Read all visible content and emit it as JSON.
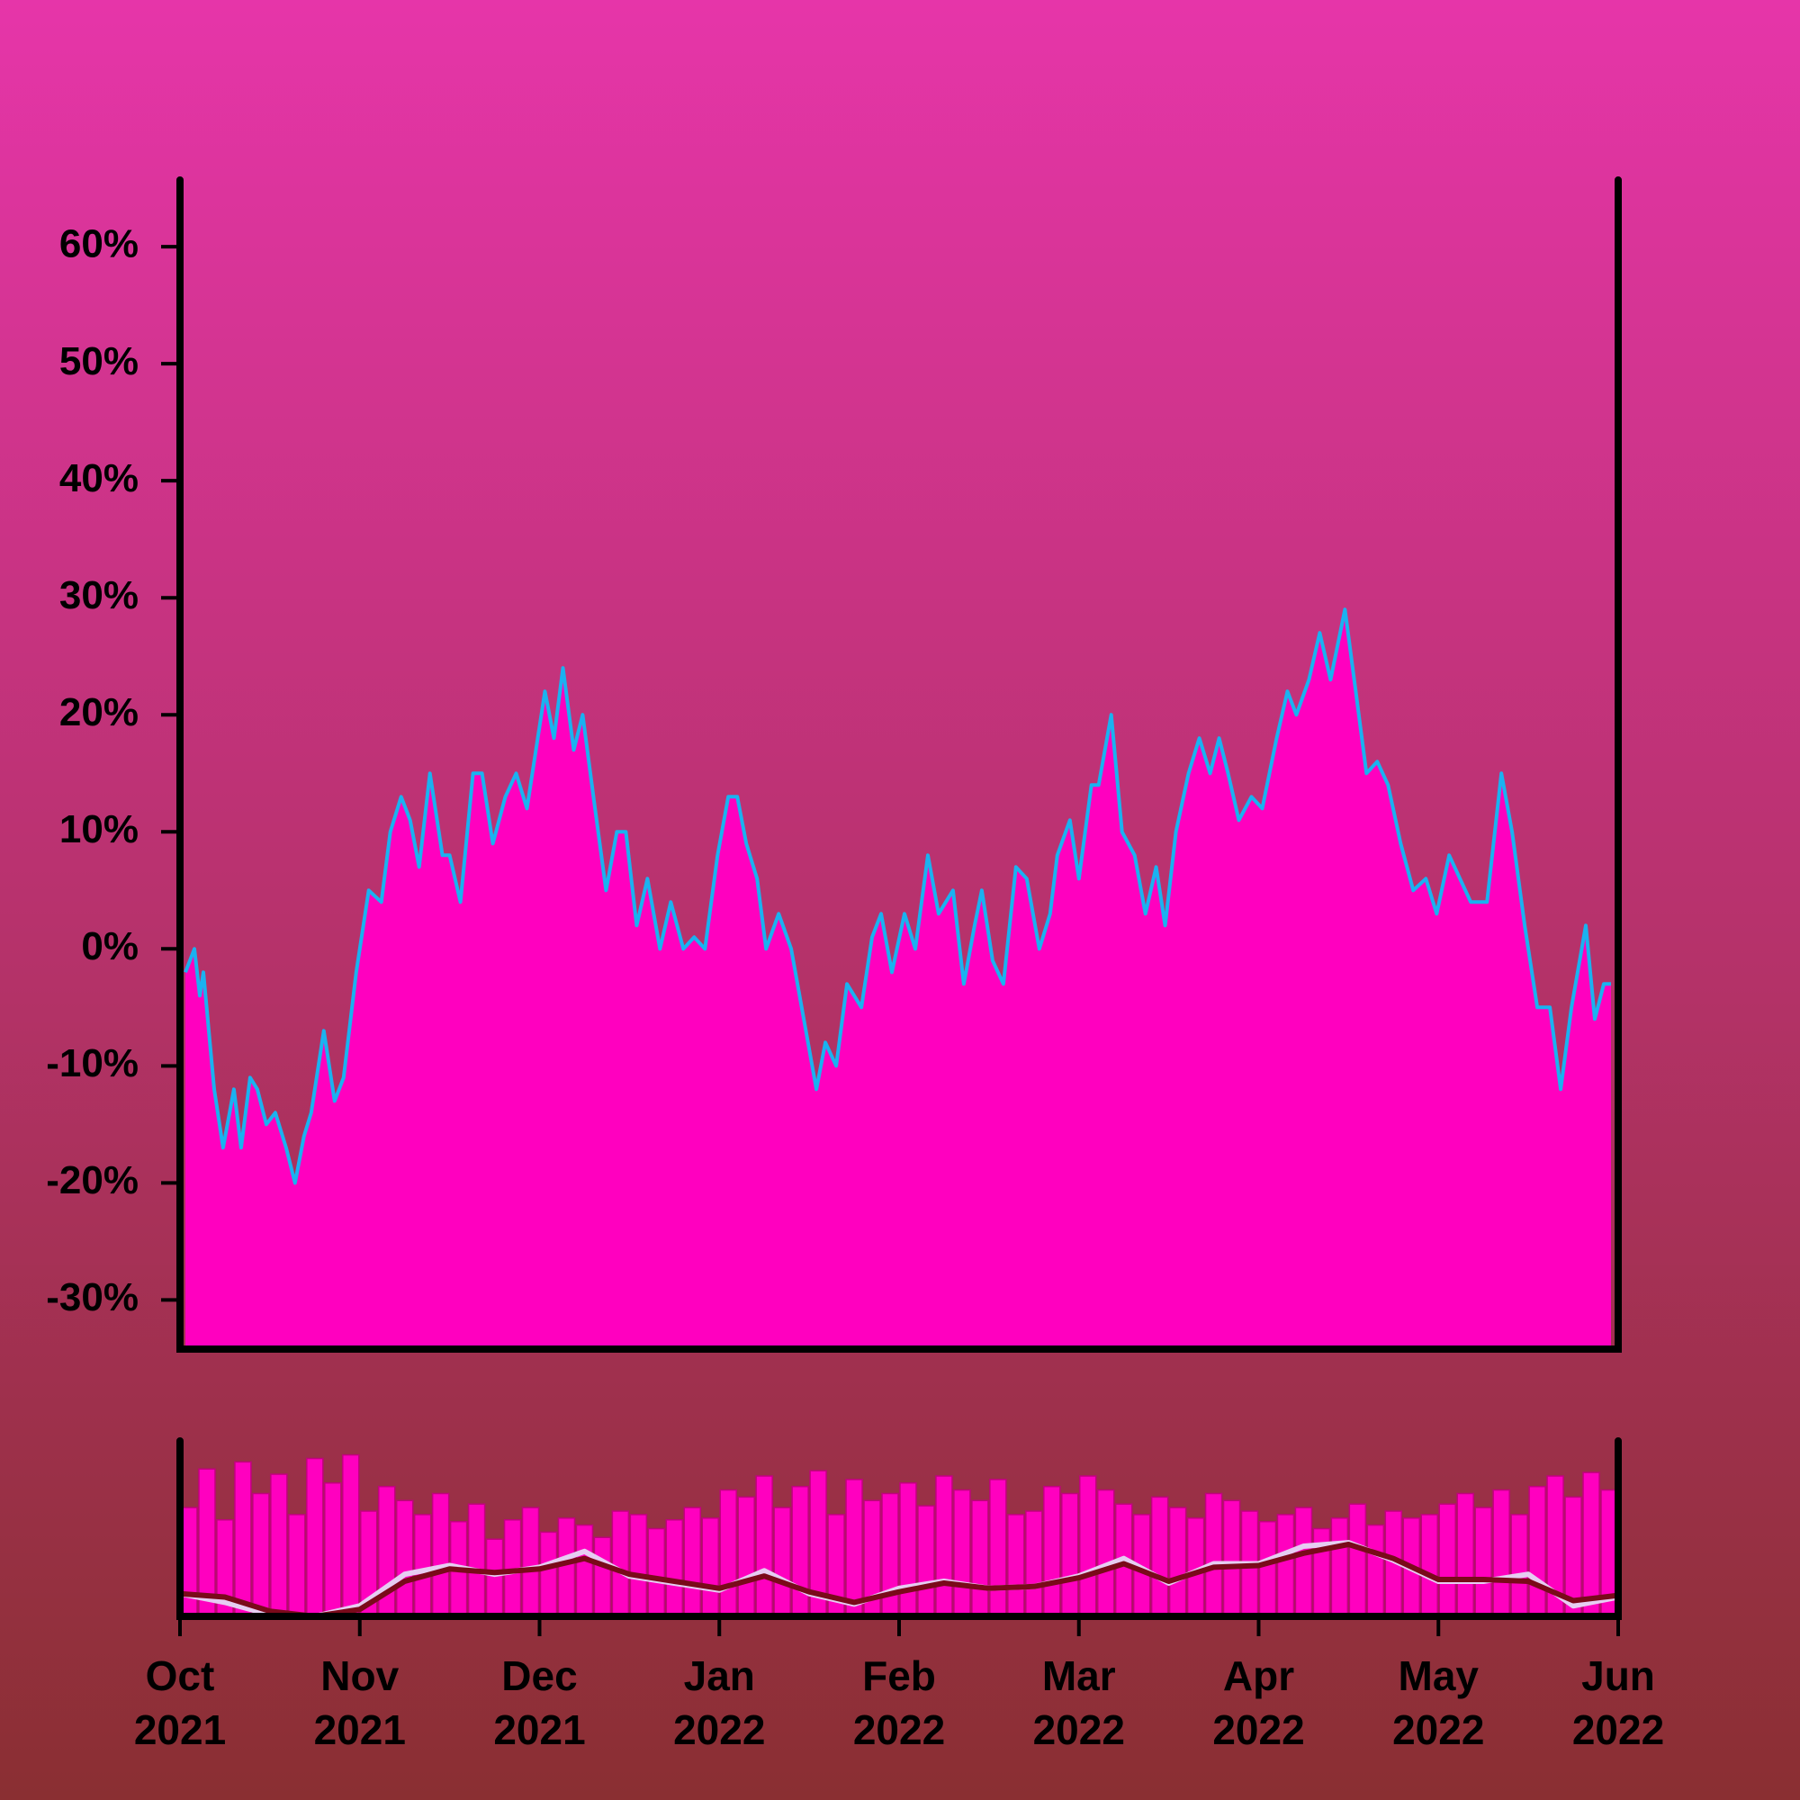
{
  "chart_data": [
    {
      "type": "area",
      "xlim": [
        0,
        8
      ],
      "ylim": [
        -34.2,
        65.7
      ],
      "yticks": [
        {
          "value": -30,
          "label": "-30%"
        },
        {
          "value": -20,
          "label": "-20%"
        },
        {
          "value": -10,
          "label": "-10%"
        },
        {
          "value": 0,
          "label": "0%"
        },
        {
          "value": 10,
          "label": "10%"
        },
        {
          "value": 20,
          "label": "20%"
        },
        {
          "value": 30,
          "label": "30%"
        },
        {
          "value": 40,
          "label": "40%"
        },
        {
          "value": 50,
          "label": "50%"
        },
        {
          "value": 60,
          "label": "60%"
        }
      ],
      "color": "#ff00bf",
      "line_color": "#1ab2f0",
      "x": [
        0.03,
        0.08,
        0.11,
        0.13,
        0.19,
        0.24,
        0.3,
        0.34,
        0.39,
        0.43,
        0.48,
        0.53,
        0.59,
        0.64,
        0.69,
        0.73,
        0.8,
        0.86,
        0.91,
        0.98,
        1.05,
        1.12,
        1.17,
        1.23,
        1.28,
        1.33,
        1.39,
        1.46,
        1.5,
        1.56,
        1.63,
        1.68,
        1.74,
        1.81,
        1.87,
        1.93,
        2.03,
        2.08,
        2.13,
        2.19,
        2.24,
        2.3,
        2.37,
        2.43,
        2.48,
        2.54,
        2.6,
        2.67,
        2.73,
        2.8,
        2.86,
        2.92,
        2.99,
        3.05,
        3.1,
        3.15,
        3.21,
        3.26,
        3.33,
        3.4,
        3.47,
        3.54,
        3.59,
        3.65,
        3.71,
        3.79,
        3.85,
        3.9,
        3.96,
        4.03,
        4.09,
        4.16,
        4.22,
        4.3,
        4.36,
        4.42,
        4.46,
        4.52,
        4.58,
        4.65,
        4.71,
        4.78,
        4.84,
        4.88,
        4.95,
        5.0,
        5.07,
        5.11,
        5.18,
        5.24,
        5.31,
        5.37,
        5.43,
        5.48,
        5.54,
        5.61,
        5.67,
        5.73,
        5.78,
        5.83,
        5.89,
        5.96,
        6.02,
        6.1,
        6.16,
        6.21,
        6.28,
        6.34,
        6.4,
        6.48,
        6.54,
        6.6,
        6.66,
        6.72,
        6.79,
        6.86,
        6.93,
        6.99,
        7.06,
        7.12,
        7.18,
        7.27,
        7.35,
        7.41,
        7.48,
        7.55,
        7.62,
        7.68,
        7.74,
        7.82,
        7.87,
        7.92,
        7.96
      ],
      "values": [
        -2,
        0,
        -4,
        -2,
        -12,
        -17,
        -12,
        -17,
        -11,
        -12,
        -15,
        -14,
        -17,
        -20,
        -16,
        -14,
        -7,
        -13,
        -11,
        -2,
        5,
        4,
        10,
        13,
        11,
        7,
        15,
        8,
        8,
        4,
        15,
        15,
        9,
        13,
        15,
        12,
        22,
        18,
        24,
        17,
        20,
        13,
        5,
        10,
        10,
        2,
        6,
        0,
        4,
        0,
        1,
        0,
        8,
        13,
        13,
        9,
        6,
        0,
        3,
        0,
        -6,
        -12,
        -8,
        -10,
        -3,
        -5,
        1,
        3,
        -2,
        3,
        0,
        8,
        3,
        5,
        -3,
        2,
        5,
        -1,
        -3,
        7,
        6,
        0,
        3,
        8,
        11,
        6,
        14,
        14,
        20,
        10,
        8,
        3,
        7,
        2,
        10,
        15,
        18,
        15,
        18,
        15,
        11,
        13,
        12,
        18,
        22,
        20,
        23,
        27,
        23,
        29,
        22,
        15,
        16,
        14,
        9,
        5,
        6,
        3,
        8,
        6,
        4,
        4,
        15,
        10,
        2,
        -5,
        -5,
        -12,
        -5,
        2,
        -6,
        -3,
        -3
      ]
    },
    {
      "type": "bar",
      "xlim": [
        0,
        8
      ],
      "ylim": [
        0,
        100
      ],
      "xticks": [
        {
          "value": 0,
          "label": "Oct 2021"
        },
        {
          "value": 1,
          "label": "Nov 2021"
        },
        {
          "value": 2,
          "label": "Dec 2021"
        },
        {
          "value": 3,
          "label": "Jan 2022"
        },
        {
          "value": 4,
          "label": "Feb 2022"
        },
        {
          "value": 5,
          "label": "Mar 2022"
        },
        {
          "value": 6,
          "label": "Apr 2022"
        },
        {
          "value": 7,
          "label": "May 2022"
        },
        {
          "value": 8,
          "label": "Jun 2022"
        }
      ],
      "series": [
        {
          "type": "bar",
          "color": "#ff00bf",
          "x": [
            0.05,
            0.15,
            0.25,
            0.35,
            0.45,
            0.55,
            0.65,
            0.75,
            0.85,
            0.95,
            1.05,
            1.15,
            1.25,
            1.35,
            1.45,
            1.55,
            1.65,
            1.75,
            1.85,
            1.95,
            2.05,
            2.15,
            2.25,
            2.35,
            2.45,
            2.55,
            2.65,
            2.75,
            2.85,
            2.95,
            3.05,
            3.15,
            3.25,
            3.35,
            3.45,
            3.55,
            3.65,
            3.75,
            3.85,
            3.95,
            4.05,
            4.15,
            4.25,
            4.35,
            4.45,
            4.55,
            4.65,
            4.75,
            4.85,
            4.95,
            5.05,
            5.15,
            5.25,
            5.35,
            5.45,
            5.55,
            5.65,
            5.75,
            5.85,
            5.95,
            6.05,
            6.15,
            6.25,
            6.35,
            6.45,
            6.55,
            6.65,
            6.75,
            6.85,
            6.95,
            7.05,
            7.15,
            7.25,
            7.35,
            7.45,
            7.55,
            7.65,
            7.75,
            7.85,
            7.95
          ],
          "values": [
            62,
            84,
            55,
            88,
            70,
            81,
            58,
            90,
            76,
            92,
            60,
            74,
            66,
            58,
            70,
            54,
            64,
            44,
            55,
            62,
            48,
            56,
            52,
            45,
            60,
            58,
            50,
            55,
            62,
            56,
            72,
            68,
            80,
            62,
            74,
            83,
            58,
            78,
            66,
            70,
            76,
            63,
            80,
            72,
            66,
            78,
            58,
            60,
            74,
            70,
            80,
            72,
            64,
            58,
            68,
            62,
            56,
            70,
            66,
            60,
            54,
            58,
            62,
            50,
            56,
            64,
            52,
            60,
            56,
            58,
            64,
            70,
            62,
            72,
            58,
            74,
            80,
            68,
            82,
            72
          ]
        },
        {
          "type": "line",
          "color": "#e6cdf2",
          "x": [
            0,
            0.25,
            0.5,
            0.75,
            1,
            1.25,
            1.5,
            1.75,
            2,
            2.25,
            2.5,
            2.75,
            3,
            3.25,
            3.5,
            3.75,
            4,
            4.25,
            4.5,
            4.75,
            5,
            5.25,
            5.5,
            5.75,
            6,
            6.25,
            6.5,
            6.75,
            7,
            7.25,
            7.5,
            7.75,
            8
          ],
          "values": [
            13,
            8,
            1,
            0,
            6,
            24,
            29,
            24,
            28,
            37,
            23,
            19,
            15,
            26,
            13,
            7,
            16,
            20,
            16,
            17,
            23,
            33,
            19,
            30,
            30,
            40,
            42,
            32,
            20,
            20,
            24,
            6,
            11
          ]
        },
        {
          "type": "line",
          "color": "#7a0a1a",
          "x": [
            0,
            0.25,
            0.5,
            0.75,
            1,
            1.25,
            1.5,
            1.75,
            2,
            2.25,
            2.5,
            2.75,
            3,
            3.25,
            3.5,
            3.75,
            4,
            4.25,
            4.5,
            4.75,
            5,
            5.25,
            5.5,
            5.75,
            6,
            6.25,
            6.5,
            6.75,
            7,
            7.25,
            7.5,
            7.75,
            8
          ],
          "values": [
            13,
            11,
            3,
            0,
            4,
            20,
            27,
            25,
            27,
            33,
            24,
            20,
            16,
            23,
            14,
            8,
            14,
            19,
            16,
            17,
            22,
            30,
            20,
            28,
            29,
            36,
            41,
            33,
            21,
            21,
            20,
            9,
            12
          ]
        }
      ]
    }
  ]
}
